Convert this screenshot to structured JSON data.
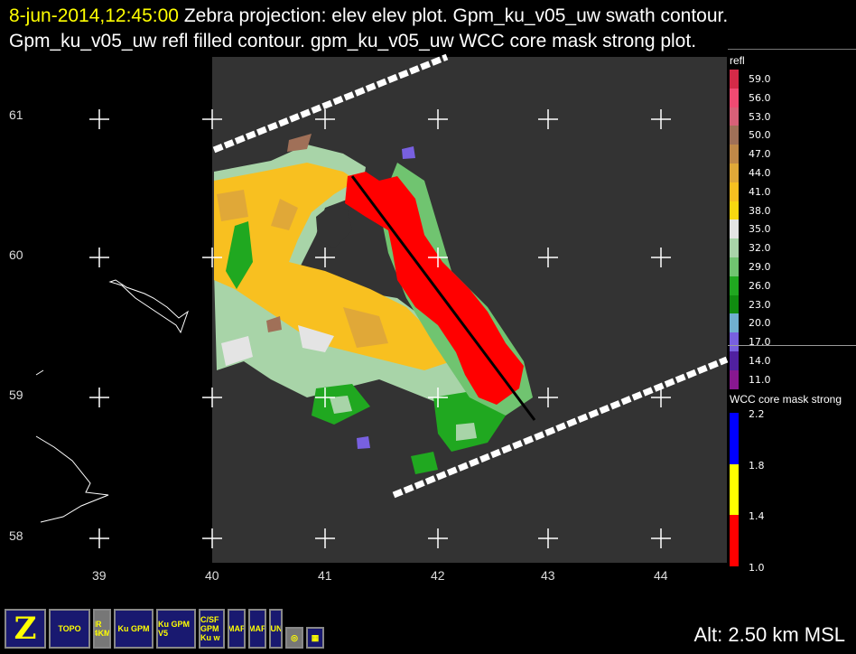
{
  "title": {
    "datetime": "8-jun-2014,12:45:00",
    "text": "Zebra projection: elev elev  plot.  Gpm_ku_v05_uw swath contour.  Gpm_ku_v05_uw refl filled contour.  gpm_ku_v05_uw WCC core mask strong  plot."
  },
  "axes": {
    "lon_ticks": [
      "39",
      "40",
      "41",
      "42",
      "43",
      "44"
    ],
    "lat_ticks": [
      "61",
      "60",
      "59",
      "58"
    ]
  },
  "legend_refl": {
    "title": "refl",
    "entries": [
      {
        "label": "59.0",
        "color": "#d42a48"
      },
      {
        "label": "56.0",
        "color": "#f04a72"
      },
      {
        "label": "53.0",
        "color": "#d86078"
      },
      {
        "label": "50.0",
        "color": "#a07058"
      },
      {
        "label": "47.0",
        "color": "#c08848"
      },
      {
        "label": "44.0",
        "color": "#e0a838"
      },
      {
        "label": "41.0",
        "color": "#f8c020"
      },
      {
        "label": "38.0",
        "color": "#f8d810"
      },
      {
        "label": "35.0",
        "color": "#e4e4e4"
      },
      {
        "label": "32.0",
        "color": "#a8d4a8"
      },
      {
        "label": "29.0",
        "color": "#70c470"
      },
      {
        "label": "26.0",
        "color": "#20a820"
      },
      {
        "label": "23.0",
        "color": "#108c10"
      },
      {
        "label": "20.0",
        "color": "#70b0d0"
      },
      {
        "label": "17.0",
        "color": "#7860e0"
      },
      {
        "label": "14.0",
        "color": "#5020a0"
      },
      {
        "label": "11.0",
        "color": "#881890"
      }
    ]
  },
  "legend_wcc": {
    "title": "WCC core mask strong",
    "labels": [
      "2.2",
      "1.8",
      "1.4",
      "1.0"
    ],
    "colors": [
      "#0000ff",
      "#ffff00",
      "#ff0000"
    ]
  },
  "toolbar": [
    {
      "name": "zebra",
      "label": "Z"
    },
    {
      "name": "topo",
      "label": "TOPO"
    },
    {
      "name": "ir-4km",
      "label": "IR 4KM"
    },
    {
      "name": "gpm-ku",
      "label": "Ku GPM"
    },
    {
      "name": "gpm-ku-v5",
      "label": "Ku GPM V5"
    },
    {
      "name": "csf-gpm",
      "label": "C/SF GPM Ku w"
    },
    {
      "name": "map1",
      "label": "MAP"
    },
    {
      "name": "map2",
      "label": "MAP"
    },
    {
      "name": "bounds",
      "label": "BOUNDS"
    },
    {
      "name": "target",
      "label": "◎"
    },
    {
      "name": "grid",
      "label": "▦"
    }
  ],
  "status": {
    "altitude": "Alt: 2.50 km MSL"
  }
}
